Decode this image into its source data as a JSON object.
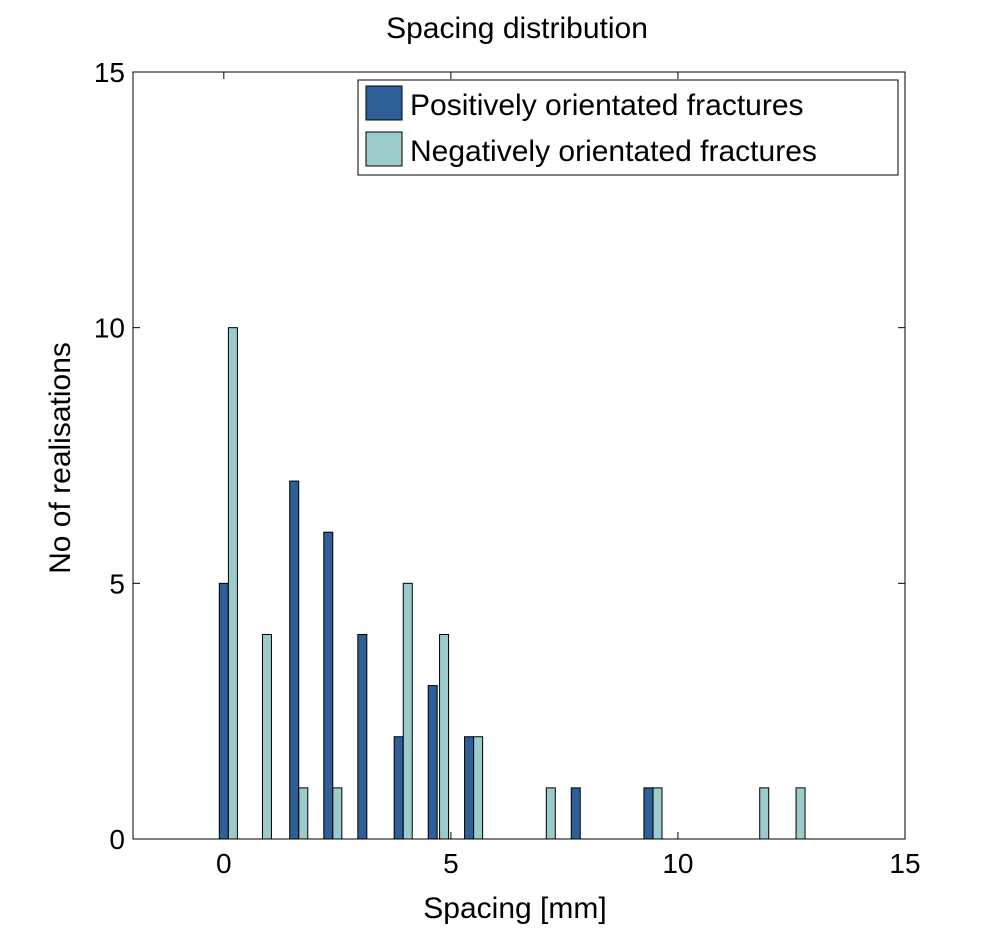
{
  "chart_data": {
    "type": "bar",
    "title": "Spacing distribution",
    "xlabel": "Spacing [mm]",
    "ylabel": "No of realisations",
    "xlim": [
      -2,
      15
    ],
    "ylim": [
      0,
      15
    ],
    "xticks": [
      0,
      5,
      10,
      15
    ],
    "yticks": [
      0,
      5,
      10,
      15
    ],
    "grid": false,
    "legend_position": "top-right",
    "series": [
      {
        "name": "Positively orientated fractures",
        "color": "#2E5F96",
        "points": [
          {
            "x": 0.0,
            "y": 5
          },
          {
            "x": 1.55,
            "y": 7
          },
          {
            "x": 2.3,
            "y": 6
          },
          {
            "x": 3.05,
            "y": 4
          },
          {
            "x": 3.85,
            "y": 2
          },
          {
            "x": 4.6,
            "y": 3
          },
          {
            "x": 5.4,
            "y": 2
          },
          {
            "x": 7.75,
            "y": 1
          },
          {
            "x": 9.35,
            "y": 1
          }
        ]
      },
      {
        "name": "Negatively orientated fractures",
        "color": "#9BCBCB",
        "points": [
          {
            "x": 0.2,
            "y": 10
          },
          {
            "x": 0.95,
            "y": 4
          },
          {
            "x": 1.75,
            "y": 1
          },
          {
            "x": 2.5,
            "y": 1
          },
          {
            "x": 4.05,
            "y": 5
          },
          {
            "x": 4.85,
            "y": 4
          },
          {
            "x": 5.6,
            "y": 2
          },
          {
            "x": 7.2,
            "y": 1
          },
          {
            "x": 9.55,
            "y": 1
          },
          {
            "x": 11.9,
            "y": 1
          },
          {
            "x": 12.7,
            "y": 1
          }
        ]
      }
    ]
  }
}
